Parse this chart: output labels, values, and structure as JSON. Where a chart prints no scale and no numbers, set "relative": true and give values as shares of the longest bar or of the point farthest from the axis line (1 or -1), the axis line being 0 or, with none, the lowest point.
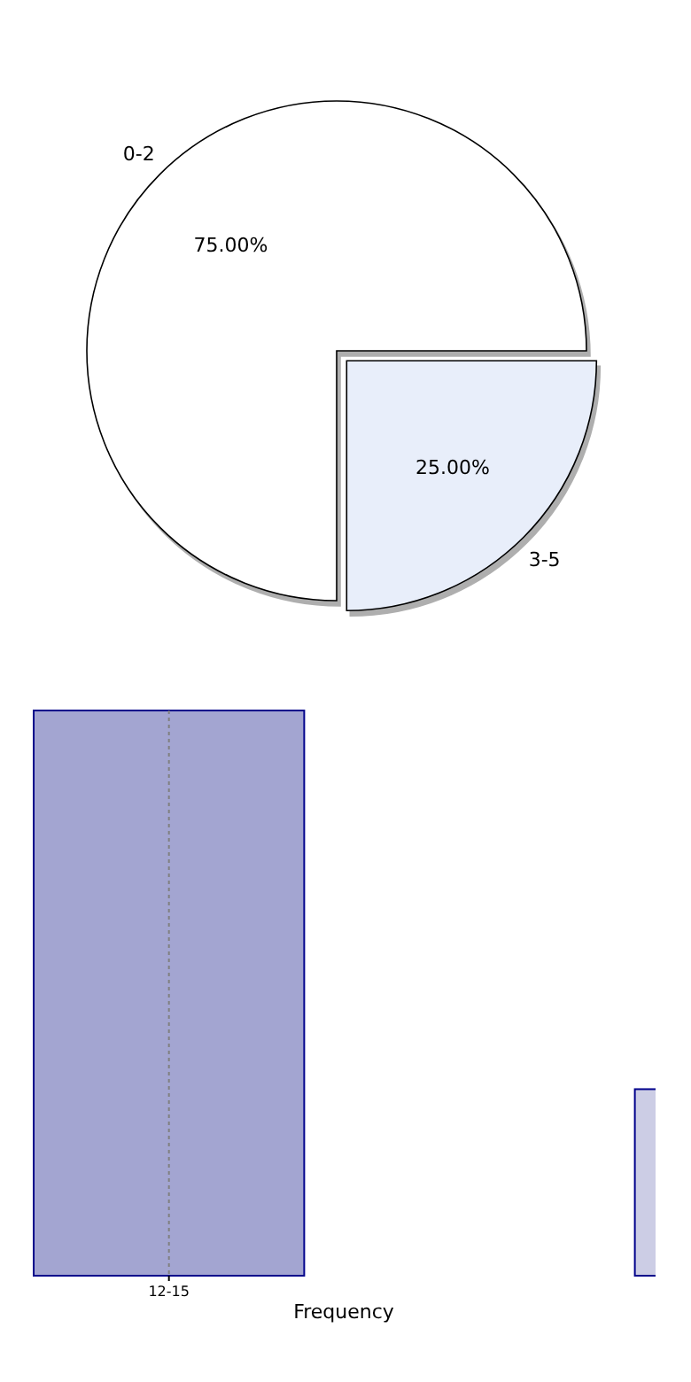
{
  "chart_data": [
    {
      "type": "pie",
      "categories": [
        "0-2",
        "3-5"
      ],
      "values": [
        75,
        25
      ],
      "colors": [
        "#ffffff",
        "#e8eefa"
      ],
      "value_labels": [
        "75.00%",
        "25.00%"
      ]
    },
    {
      "type": "bar",
      "categories": [
        "12-15",
        null
      ],
      "values": [
        1,
        0.33
      ],
      "colors": [
        "#a3a5d1",
        "#cccde5"
      ],
      "relative": true,
      "xlabel": "Frequency",
      "ref_lines": [
        {
          "axis": "x",
          "value": "12-15",
          "color": "#808080",
          "line_style": "dotted"
        }
      ]
    }
  ]
}
